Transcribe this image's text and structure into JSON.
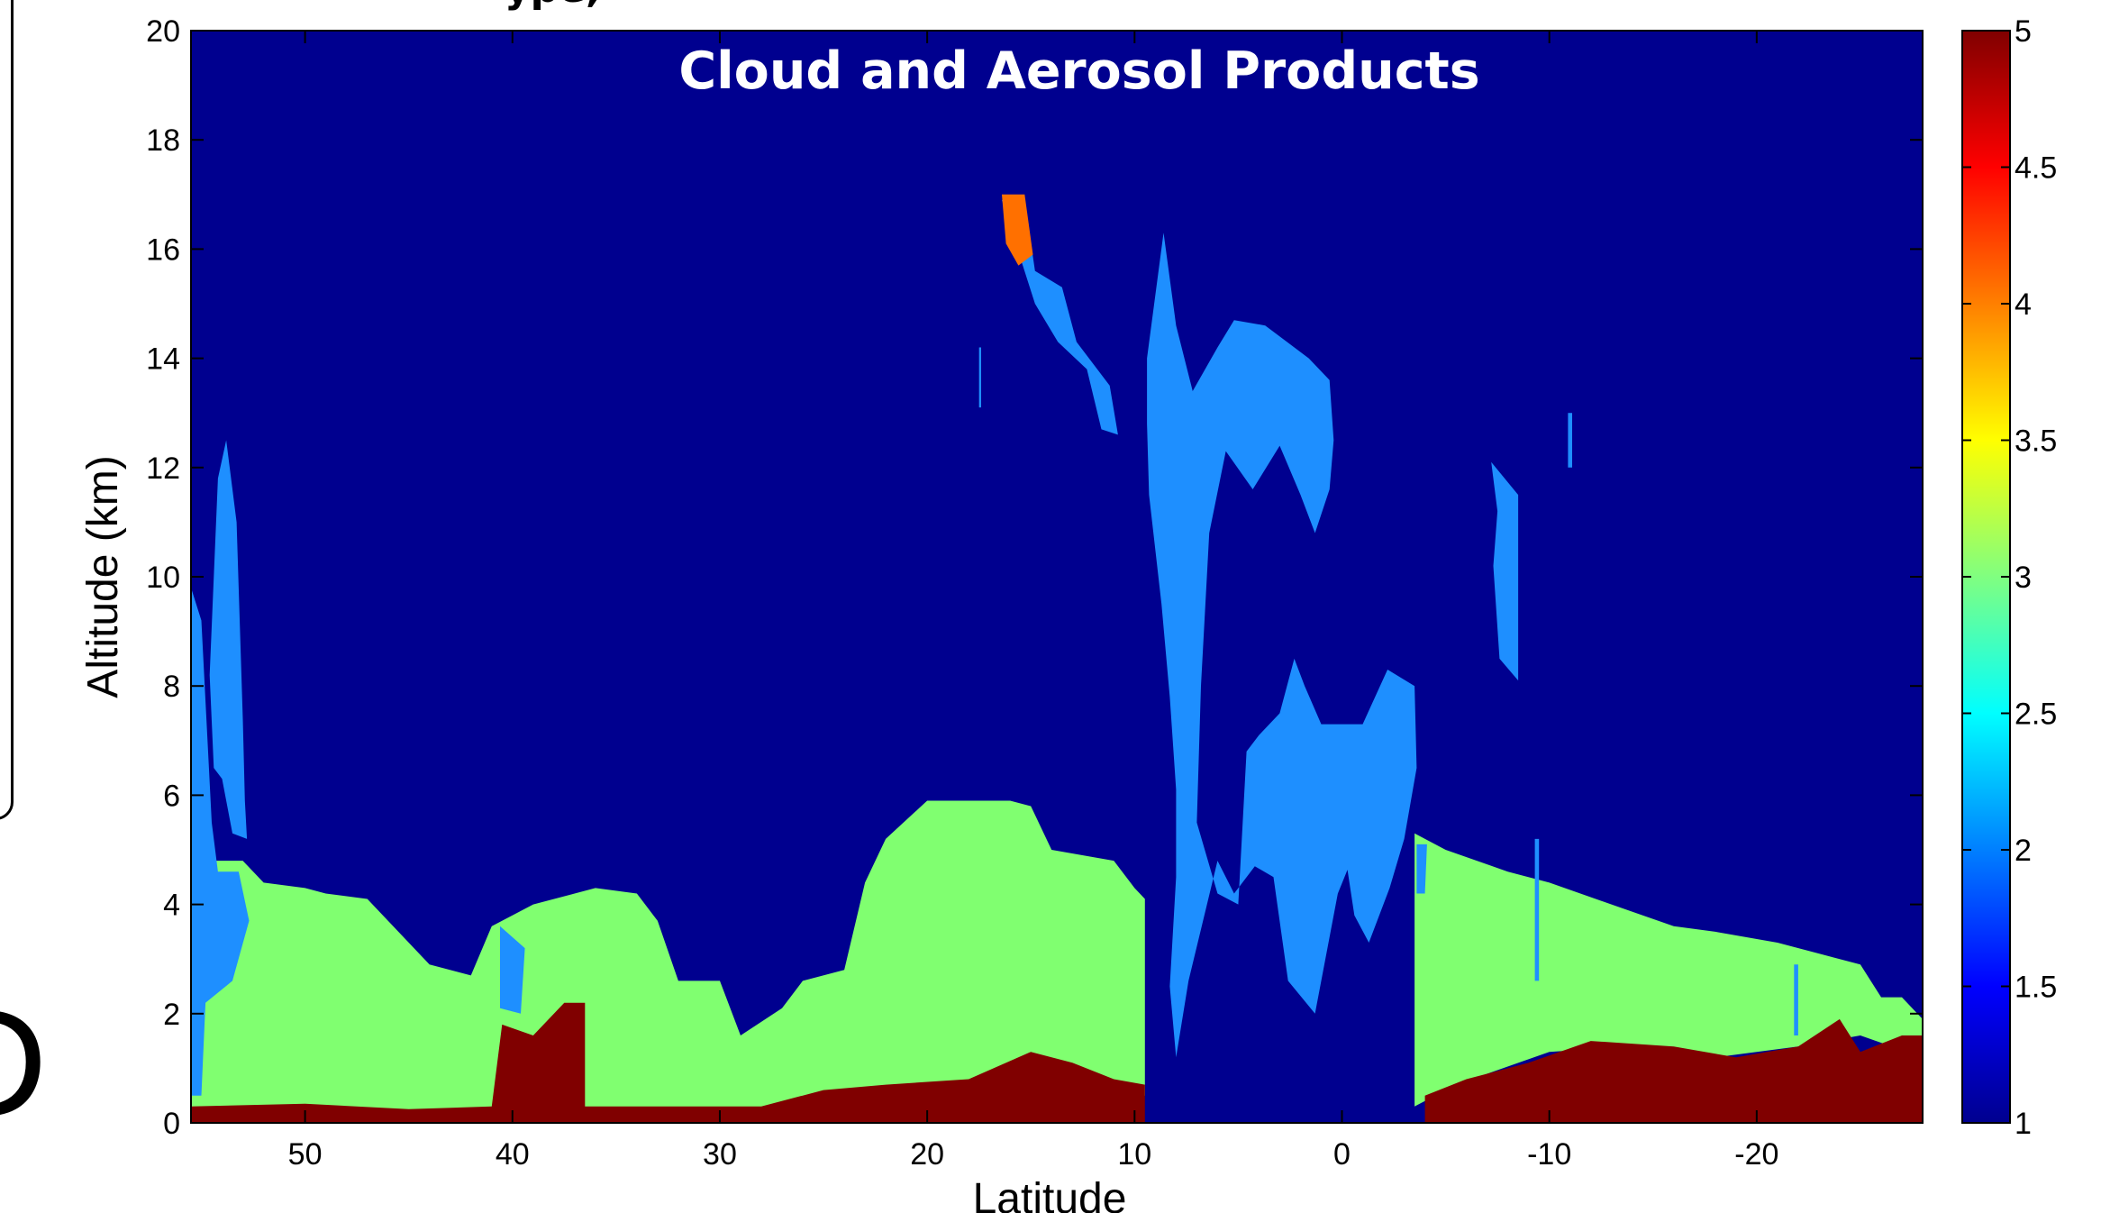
{
  "figure": {
    "clipped_top_text": "ype,",
    "partial_letter": "D"
  },
  "chart_data": {
    "type": "heatmap",
    "title": "Cloud and Aerosol Products",
    "xlabel": "Latitude",
    "ylabel": "Altitude (km)",
    "xlim": [
      55.5,
      -28
    ],
    "ylim": [
      0,
      20
    ],
    "x_ticks": [
      50,
      40,
      30,
      20,
      10,
      0,
      -10,
      -20
    ],
    "x_tick_labels": [
      "50",
      "40",
      "30",
      "20",
      "10",
      "0",
      "-10",
      "-20"
    ],
    "y_ticks": [
      0,
      2,
      4,
      6,
      8,
      10,
      12,
      14,
      16,
      18,
      20
    ],
    "y_tick_labels": [
      "0",
      "2",
      "4",
      "6",
      "8",
      "10",
      "12",
      "14",
      "16",
      "18",
      "20"
    ],
    "colorbar": {
      "range": [
        1,
        5
      ],
      "ticks": [
        1,
        1.5,
        2,
        2.5,
        3,
        3.5,
        4,
        4.5,
        5
      ],
      "tick_labels": [
        "1",
        "1.5",
        "2",
        "2.5",
        "3",
        "3.5",
        "4",
        "4.5",
        "5"
      ],
      "colormap": "jet"
    },
    "background_value": 1,
    "colors": {
      "background": "#00008f",
      "value_2": "#1e8fff",
      "value_3": "#80ff70",
      "value_4": "#ff7000",
      "value_5": "#800000"
    },
    "features": [
      {
        "label": "Aerosol layer (value 3)",
        "value": 3,
        "polygon": [
          [
            55.5,
            0.2
          ],
          [
            55.5,
            4.8
          ],
          [
            53,
            4.8
          ],
          [
            52,
            4.4
          ],
          [
            50,
            4.3
          ],
          [
            49,
            4.2
          ],
          [
            47,
            4.1
          ],
          [
            45,
            3.3
          ],
          [
            44,
            2.9
          ],
          [
            42,
            2.7
          ],
          [
            41,
            3.6
          ],
          [
            39,
            4
          ],
          [
            36,
            4.3
          ],
          [
            34,
            4.2
          ],
          [
            33,
            3.7
          ],
          [
            32,
            2.6
          ],
          [
            30,
            2.6
          ],
          [
            29,
            1.6
          ],
          [
            27,
            2.1
          ],
          [
            26,
            2.6
          ],
          [
            24,
            2.8
          ],
          [
            23,
            4.4
          ],
          [
            22,
            5.2
          ],
          [
            20,
            5.9
          ],
          [
            18,
            5.9
          ],
          [
            16,
            5.9
          ],
          [
            15,
            5.8
          ],
          [
            14,
            5
          ],
          [
            11,
            4.8
          ],
          [
            10,
            4.3
          ],
          [
            9.5,
            4.1
          ],
          [
            9.5,
            0.5
          ],
          [
            11,
            0.3
          ],
          [
            13,
            0.5
          ],
          [
            16,
            0.9
          ],
          [
            20,
            0.6
          ],
          [
            25,
            0.4
          ],
          [
            30,
            0.2
          ],
          [
            35,
            0.2
          ],
          [
            40,
            0.2
          ],
          [
            45,
            0.1
          ],
          [
            50,
            0.1
          ]
        ]
      },
      {
        "label": "Aerosol layer (value 3)",
        "value": 3,
        "polygon": [
          [
            -3.5,
            5.3
          ],
          [
            -5,
            5
          ],
          [
            -8,
            4.6
          ],
          [
            -10,
            4.4
          ],
          [
            -13,
            4
          ],
          [
            -16,
            3.6
          ],
          [
            -18,
            3.5
          ],
          [
            -21,
            3.3
          ],
          [
            -23,
            3.1
          ],
          [
            -25,
            2.9
          ],
          [
            -26,
            2.3
          ],
          [
            -27,
            2.3
          ],
          [
            -28,
            1.9
          ],
          [
            -28,
            1.2
          ],
          [
            -25,
            1.6
          ],
          [
            -22,
            1.4
          ],
          [
            -18,
            1.2
          ],
          [
            -14,
            1.4
          ],
          [
            -10,
            1.3
          ],
          [
            -7,
            0.9
          ],
          [
            -5,
            0.6
          ],
          [
            -3.5,
            0.3
          ]
        ]
      },
      {
        "label": "Surface layer (value 5)",
        "value": 5,
        "polygon": [
          [
            55.5,
            0
          ],
          [
            55.5,
            0.3
          ],
          [
            50,
            0.35
          ],
          [
            45,
            0.25
          ],
          [
            41,
            0.3
          ],
          [
            40.5,
            1.8
          ],
          [
            39,
            1.6
          ],
          [
            37.5,
            2.2
          ],
          [
            36.5,
            2.2
          ],
          [
            36.5,
            0.3
          ],
          [
            32,
            0.3
          ],
          [
            28,
            0.3
          ],
          [
            25,
            0.6
          ],
          [
            22,
            0.7
          ],
          [
            18,
            0.8
          ],
          [
            15,
            1.3
          ],
          [
            13,
            1.1
          ],
          [
            11,
            0.8
          ],
          [
            9.5,
            0.7
          ],
          [
            9.5,
            0
          ]
        ]
      },
      {
        "label": "Surface layer (value 5)",
        "value": 5,
        "polygon": [
          [
            -4,
            0
          ],
          [
            -4,
            0.5
          ],
          [
            -6,
            0.8
          ],
          [
            -9,
            1.1
          ],
          [
            -12,
            1.5
          ],
          [
            -16,
            1.4
          ],
          [
            -19,
            1.2
          ],
          [
            -22,
            1.4
          ],
          [
            -24,
            1.9
          ],
          [
            -25,
            1.3
          ],
          [
            -27,
            1.6
          ],
          [
            -28,
            1.6
          ],
          [
            -28,
            0
          ]
        ]
      },
      {
        "label": "Cloud (value 2)",
        "value": 2,
        "polygon": [
          [
            55.5,
            0.5
          ],
          [
            55.5,
            9.8
          ],
          [
            55,
            9.2
          ],
          [
            54.5,
            5.5
          ],
          [
            54.2,
            4.6
          ],
          [
            53.2,
            4.6
          ],
          [
            52.7,
            3.7
          ],
          [
            53.5,
            2.6
          ],
          [
            54.8,
            2.2
          ],
          [
            55,
            0.5
          ]
        ]
      },
      {
        "label": "Cloud (value 2)",
        "value": 2,
        "polygon": [
          [
            54.6,
            8.2
          ],
          [
            54.2,
            11.8
          ],
          [
            53.8,
            12.5
          ],
          [
            53.3,
            11
          ],
          [
            53,
            7.4
          ],
          [
            52.9,
            5.9
          ],
          [
            52.8,
            5.2
          ],
          [
            53.5,
            5.3
          ],
          [
            54,
            6.3
          ],
          [
            54.4,
            6.5
          ]
        ]
      },
      {
        "label": "Cloud (value 2)",
        "value": 2,
        "polygon": [
          [
            16.4,
            16.9
          ],
          [
            15.3,
            16.9
          ],
          [
            14.8,
            15.6
          ],
          [
            13.5,
            15.3
          ],
          [
            12.8,
            14.3
          ],
          [
            11.2,
            13.5
          ],
          [
            10.8,
            12.6
          ],
          [
            11.6,
            12.7
          ],
          [
            12.3,
            13.8
          ],
          [
            13.7,
            14.3
          ],
          [
            14.8,
            15
          ]
        ]
      },
      {
        "label": "Cloud (value 2)",
        "value": 2,
        "polygon": [
          [
            9.4,
            14
          ],
          [
            8.6,
            16.3
          ],
          [
            8,
            14.6
          ],
          [
            7.2,
            13.4
          ],
          [
            6,
            14.2
          ],
          [
            5.2,
            14.7
          ],
          [
            3.7,
            14.6
          ],
          [
            1.6,
            14
          ],
          [
            0.6,
            13.6
          ],
          [
            0.4,
            12.5
          ],
          [
            0.6,
            11.6
          ],
          [
            1.3,
            10.8
          ],
          [
            2,
            11.5
          ],
          [
            3,
            12.4
          ],
          [
            4.3,
            11.6
          ],
          [
            5.6,
            12.3
          ],
          [
            6.4,
            10.8
          ],
          [
            6.8,
            8
          ],
          [
            7,
            5.5
          ],
          [
            6,
            4.2
          ],
          [
            5,
            4
          ],
          [
            4.6,
            6.8
          ],
          [
            4,
            7.1
          ],
          [
            3,
            7.5
          ],
          [
            2.3,
            8.5
          ],
          [
            1.8,
            8
          ],
          [
            1,
            7.3
          ],
          [
            -1,
            7.3
          ],
          [
            -2.2,
            8.3
          ],
          [
            -3.5,
            8
          ],
          [
            -3.6,
            6.5
          ],
          [
            -3,
            5.2
          ],
          [
            -2.3,
            4.3
          ],
          [
            -1.3,
            3.3
          ],
          [
            -0.6,
            3.8
          ],
          [
            0,
            5.3
          ],
          [
            -0.6,
            6.6
          ],
          [
            -1.6,
            7.6
          ],
          [
            -2.7,
            7
          ],
          [
            -2.2,
            6.3
          ],
          [
            -1.3,
            5.6
          ],
          [
            0.2,
            4.2
          ],
          [
            1.3,
            2
          ],
          [
            2.6,
            2.6
          ],
          [
            3.3,
            4.5
          ],
          [
            4.2,
            4.7
          ],
          [
            5.2,
            4.2
          ],
          [
            6,
            4.8
          ],
          [
            7.4,
            2.6
          ],
          [
            8,
            1.2
          ],
          [
            8.3,
            2.5
          ],
          [
            8,
            4.5
          ],
          [
            8,
            6.1
          ],
          [
            8.3,
            7.8
          ],
          [
            8.7,
            9.5
          ],
          [
            9.3,
            11.5
          ],
          [
            9.4,
            12.8
          ]
        ]
      },
      {
        "label": "Cloud (value 2)",
        "value": 2,
        "polygon": [
          [
            -7.2,
            12.1
          ],
          [
            -8.5,
            11.5
          ],
          [
            -8.5,
            8.1
          ],
          [
            -7.6,
            8.5
          ],
          [
            -7.3,
            10.2
          ],
          [
            -7.5,
            11.2
          ]
        ]
      },
      {
        "label": "Cloud (value 2)",
        "value": 2,
        "polygon": [
          [
            -3.6,
            5.1
          ],
          [
            -4.1,
            5.1
          ],
          [
            -4,
            4.2
          ],
          [
            -3.6,
            4.2
          ]
        ]
      },
      {
        "label": "Cloud (value 2)",
        "value": 2,
        "polygon": [
          [
            -10.9,
            13
          ],
          [
            -11.1,
            13
          ],
          [
            -11.1,
            12
          ],
          [
            -10.9,
            12
          ]
        ]
      },
      {
        "label": "Cloud (value 2)",
        "value": 2,
        "polygon": [
          [
            17.5,
            14.2
          ],
          [
            17.4,
            14.2
          ],
          [
            17.4,
            13.1
          ],
          [
            17.5,
            13.1
          ]
        ]
      },
      {
        "label": "Cloud (value 2)",
        "value": 2,
        "polygon": [
          [
            40.6,
            3.6
          ],
          [
            39.4,
            3.2
          ],
          [
            39.6,
            2
          ],
          [
            40.6,
            2.1
          ]
        ]
      },
      {
        "label": "Cloud (value 2)",
        "value": 2,
        "polygon": [
          [
            -9.3,
            5.2
          ],
          [
            -9.5,
            5.2
          ],
          [
            -9.5,
            2.6
          ],
          [
            -9.3,
            2.6
          ]
        ]
      },
      {
        "label": "Cloud (value 2)",
        "value": 2,
        "polygon": [
          [
            -21.8,
            2.9
          ],
          [
            -22,
            2.9
          ],
          [
            -22,
            1.6
          ],
          [
            -21.8,
            1.6
          ]
        ]
      },
      {
        "label": "Cloud (value 4)",
        "value": 4,
        "polygon": [
          [
            16.4,
            17
          ],
          [
            15.3,
            17
          ],
          [
            14.9,
            15.9
          ],
          [
            15.6,
            15.7
          ],
          [
            16.2,
            16.1
          ]
        ]
      }
    ]
  }
}
